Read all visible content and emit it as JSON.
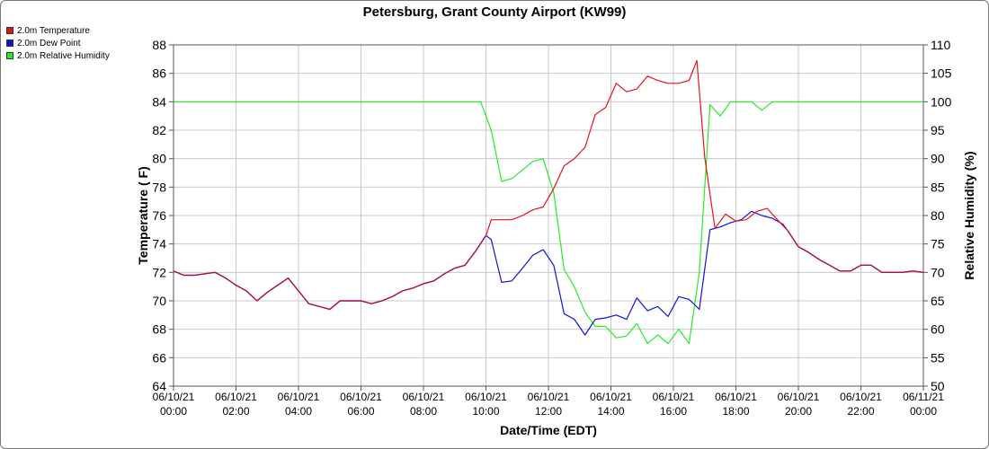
{
  "colors": {
    "temperature": "#e8111b",
    "dew_point": "#1111dd",
    "relative_humidity": "#22ee22",
    "overlap": "#aa1155",
    "grid": "#c8c8c8"
  },
  "chart_data": {
    "type": "line",
    "title": "Petersburg, Grant County Airport (KW99)",
    "xlabel": "Date/Time (EDT)",
    "ylabel_left": "Temperature ( F)",
    "ylabel_right": "Relative Humidity (%)",
    "ylim_left": [
      64,
      88
    ],
    "ylim_right": [
      50,
      110
    ],
    "xlim_hours": [
      0,
      24
    ],
    "grid": true,
    "legend_placement": "top-left",
    "x_ticks": [
      {
        "hour": 0,
        "date": "06/10/21",
        "time": "00:00"
      },
      {
        "hour": 2,
        "date": "06/10/21",
        "time": "02:00"
      },
      {
        "hour": 4,
        "date": "06/10/21",
        "time": "04:00"
      },
      {
        "hour": 6,
        "date": "06/10/21",
        "time": "06:00"
      },
      {
        "hour": 8,
        "date": "06/10/21",
        "time": "08:00"
      },
      {
        "hour": 10,
        "date": "06/10/21",
        "time": "10:00"
      },
      {
        "hour": 12,
        "date": "06/10/21",
        "time": "12:00"
      },
      {
        "hour": 14,
        "date": "06/10/21",
        "time": "14:00"
      },
      {
        "hour": 16,
        "date": "06/10/21",
        "time": "16:00"
      },
      {
        "hour": 18,
        "date": "06/10/21",
        "time": "18:00"
      },
      {
        "hour": 20,
        "date": "06/10/21",
        "time": "20:00"
      },
      {
        "hour": 22,
        "date": "06/10/21",
        "time": "22:00"
      },
      {
        "hour": 24,
        "date": "06/11/21",
        "time": "00:00"
      }
    ],
    "y_ticks_left": [
      "64",
      "66",
      "68",
      "70",
      "72",
      "74",
      "76",
      "78",
      "80",
      "82",
      "84",
      "86",
      "88"
    ],
    "y_ticks_right": [
      "50",
      "55",
      "60",
      "65",
      "70",
      "75",
      "80",
      "85",
      "90",
      "95",
      "100",
      "105",
      "110"
    ],
    "series": [
      {
        "name": "2.0m Temperature",
        "axis": "left",
        "color_key": "temperature",
        "points": [
          [
            0,
            72.1
          ],
          [
            0.33,
            71.8
          ],
          [
            0.67,
            71.8
          ],
          [
            1,
            71.9
          ],
          [
            1.33,
            72.0
          ],
          [
            1.67,
            71.6
          ],
          [
            2,
            71.1
          ],
          [
            2.33,
            70.7
          ],
          [
            2.67,
            70.0
          ],
          [
            3,
            70.6
          ],
          [
            3.33,
            71.1
          ],
          [
            3.67,
            71.6
          ],
          [
            4,
            70.7
          ],
          [
            4.33,
            69.8
          ],
          [
            4.67,
            69.6
          ],
          [
            5,
            69.4
          ],
          [
            5.33,
            70.0
          ],
          [
            5.67,
            70.0
          ],
          [
            6,
            70.0
          ],
          [
            6.33,
            69.8
          ],
          [
            6.67,
            70.0
          ],
          [
            7,
            70.3
          ],
          [
            7.33,
            70.7
          ],
          [
            7.67,
            70.9
          ],
          [
            8,
            71.2
          ],
          [
            8.33,
            71.4
          ],
          [
            8.67,
            71.9
          ],
          [
            9,
            72.3
          ],
          [
            9.33,
            72.5
          ],
          [
            9.67,
            73.5
          ],
          [
            10,
            74.6
          ],
          [
            10.17,
            75.7
          ],
          [
            10.5,
            75.7
          ],
          [
            10.83,
            75.7
          ],
          [
            11.17,
            76.0
          ],
          [
            11.5,
            76.4
          ],
          [
            11.83,
            76.6
          ],
          [
            12.17,
            77.9
          ],
          [
            12.5,
            79.5
          ],
          [
            12.83,
            80.0
          ],
          [
            13.17,
            80.8
          ],
          [
            13.5,
            83.1
          ],
          [
            13.83,
            83.6
          ],
          [
            14.17,
            85.3
          ],
          [
            14.5,
            84.7
          ],
          [
            14.83,
            84.9
          ],
          [
            15.17,
            85.8
          ],
          [
            15.5,
            85.5
          ],
          [
            15.83,
            85.3
          ],
          [
            16.17,
            85.3
          ],
          [
            16.5,
            85.5
          ],
          [
            16.75,
            86.9
          ],
          [
            17,
            80.1
          ],
          [
            17.33,
            75.1
          ],
          [
            17.67,
            76.1
          ],
          [
            18,
            75.6
          ],
          [
            18.33,
            75.7
          ],
          [
            18.67,
            76.3
          ],
          [
            19,
            76.5
          ],
          [
            19.33,
            75.7
          ],
          [
            19.67,
            74.9
          ],
          [
            20,
            73.8
          ],
          [
            20.33,
            73.4
          ],
          [
            20.67,
            72.9
          ],
          [
            21,
            72.5
          ],
          [
            21.33,
            72.1
          ],
          [
            21.67,
            72.1
          ],
          [
            22,
            72.5
          ],
          [
            22.33,
            72.5
          ],
          [
            22.67,
            72.0
          ],
          [
            23,
            72.0
          ],
          [
            23.33,
            72.0
          ],
          [
            23.67,
            72.1
          ],
          [
            24,
            72.0
          ]
        ]
      },
      {
        "name": "2.0m Dew Point",
        "axis": "left",
        "color_key": "dew_point",
        "points": [
          [
            0,
            72.1
          ],
          [
            0.33,
            71.8
          ],
          [
            0.67,
            71.8
          ],
          [
            1,
            71.9
          ],
          [
            1.33,
            72.0
          ],
          [
            1.67,
            71.6
          ],
          [
            2,
            71.1
          ],
          [
            2.33,
            70.7
          ],
          [
            2.67,
            70.0
          ],
          [
            3,
            70.6
          ],
          [
            3.33,
            71.1
          ],
          [
            3.67,
            71.6
          ],
          [
            4,
            70.7
          ],
          [
            4.33,
            69.8
          ],
          [
            4.67,
            69.6
          ],
          [
            5,
            69.4
          ],
          [
            5.33,
            70.0
          ],
          [
            5.67,
            70.0
          ],
          [
            6,
            70.0
          ],
          [
            6.33,
            69.8
          ],
          [
            6.67,
            70.0
          ],
          [
            7,
            70.3
          ],
          [
            7.33,
            70.7
          ],
          [
            7.67,
            70.9
          ],
          [
            8,
            71.2
          ],
          [
            8.33,
            71.4
          ],
          [
            8.67,
            71.9
          ],
          [
            9,
            72.3
          ],
          [
            9.33,
            72.5
          ],
          [
            9.67,
            73.5
          ],
          [
            10,
            74.6
          ],
          [
            10.17,
            74.3
          ],
          [
            10.5,
            71.3
          ],
          [
            10.83,
            71.4
          ],
          [
            11.17,
            72.3
          ],
          [
            11.5,
            73.2
          ],
          [
            11.83,
            73.6
          ],
          [
            12.17,
            72.5
          ],
          [
            12.5,
            69.1
          ],
          [
            12.83,
            68.7
          ],
          [
            13.17,
            67.6
          ],
          [
            13.5,
            68.7
          ],
          [
            13.83,
            68.8
          ],
          [
            14.17,
            69.0
          ],
          [
            14.5,
            68.7
          ],
          [
            14.83,
            70.2
          ],
          [
            15.17,
            69.3
          ],
          [
            15.5,
            69.6
          ],
          [
            15.83,
            68.9
          ],
          [
            16.17,
            70.3
          ],
          [
            16.5,
            70.1
          ],
          [
            16.83,
            69.4
          ],
          [
            17.17,
            75.0
          ],
          [
            17.5,
            75.2
          ],
          [
            17.83,
            75.5
          ],
          [
            18.17,
            75.7
          ],
          [
            18.5,
            76.3
          ],
          [
            18.83,
            76.0
          ],
          [
            19.17,
            75.8
          ],
          [
            19.5,
            75.4
          ],
          [
            19.67,
            74.9
          ],
          [
            20,
            73.8
          ],
          [
            20.33,
            73.4
          ],
          [
            20.67,
            72.9
          ],
          [
            21,
            72.5
          ],
          [
            21.33,
            72.1
          ],
          [
            21.67,
            72.1
          ],
          [
            22,
            72.5
          ],
          [
            22.33,
            72.5
          ],
          [
            22.67,
            72.0
          ],
          [
            23,
            72.0
          ],
          [
            23.33,
            72.0
          ],
          [
            23.67,
            72.1
          ],
          [
            24,
            72.0
          ]
        ]
      },
      {
        "name": "2.0m Relative Humidity",
        "axis": "right",
        "color_key": "relative_humidity",
        "points": [
          [
            0,
            100
          ],
          [
            9.83,
            100
          ],
          [
            10.17,
            95
          ],
          [
            10.5,
            86
          ],
          [
            10.83,
            86.5
          ],
          [
            11.17,
            88
          ],
          [
            11.5,
            89.5
          ],
          [
            11.83,
            90
          ],
          [
            12.17,
            84
          ],
          [
            12.5,
            70.5
          ],
          [
            12.83,
            67.5
          ],
          [
            13.17,
            63
          ],
          [
            13.5,
            60.5
          ],
          [
            13.83,
            60.5
          ],
          [
            14.17,
            58.5
          ],
          [
            14.5,
            58.8
          ],
          [
            14.83,
            61
          ],
          [
            15.17,
            57.5
          ],
          [
            15.5,
            59
          ],
          [
            15.83,
            57.5
          ],
          [
            16.17,
            60
          ],
          [
            16.5,
            57.5
          ],
          [
            16.83,
            70
          ],
          [
            17.17,
            99.5
          ],
          [
            17.5,
            97.5
          ],
          [
            17.83,
            100
          ],
          [
            18.17,
            100
          ],
          [
            18.5,
            100
          ],
          [
            18.83,
            98.5
          ],
          [
            19.17,
            100
          ],
          [
            24,
            100
          ]
        ]
      }
    ]
  }
}
